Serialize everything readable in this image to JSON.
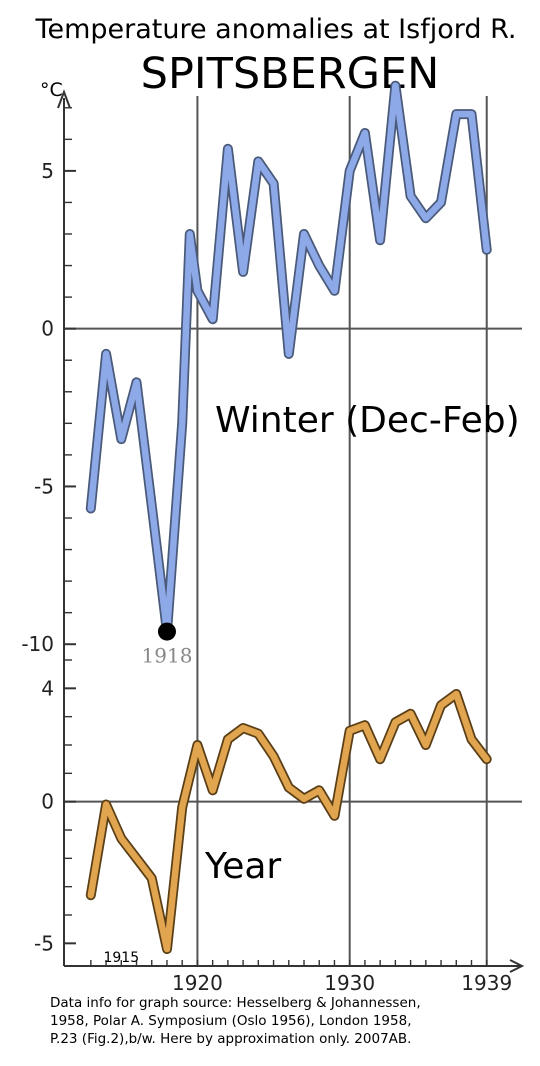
{
  "title": "Temperature anomalies at Isfjord R.",
  "subtitle": "SPITSBERGEN",
  "unit_label": "°C",
  "source_note": [
    "Data info for graph source: Hesselberg & Johannessen,",
    "1958, Polar A. Symposium (Oslo 1956), London 1958,",
    "P.23 (Fig.2),b/w. Here by approximation only. 2007AB."
  ],
  "colors": {
    "winter": "#8ea9e8",
    "winter_edge": "#4a5a7a",
    "year": "#e1a44f",
    "year_edge": "#5a3f16",
    "grid": "#555555",
    "highlight_label": "#888888"
  },
  "chart_data": [
    {
      "type": "line",
      "label": "Winter (Dec-Feb)",
      "ylabel": "°C",
      "ylim": [
        -10.5,
        7.5
      ],
      "yticks": [
        5,
        0,
        -5,
        -10
      ],
      "xlim": [
        1911.5,
        1940.2
      ],
      "xticks": [
        1920,
        1930,
        1939
      ],
      "grid": "vertical lines at 1920, 1930, 1939; horizontal zero line",
      "series": [
        {
          "x": [
            1913,
            1914,
            1915,
            1916,
            1917,
            1918,
            1919,
            1919.5,
            1920,
            1921,
            1922,
            1923,
            1924,
            1925,
            1926,
            1927,
            1928,
            1929,
            1930,
            1931,
            1932,
            1933,
            1934,
            1935,
            1936,
            1937,
            1938,
            1939
          ],
          "values": [
            -5.7,
            -0.8,
            -3.5,
            -1.7,
            -5.6,
            -9.6,
            -3.0,
            3.0,
            1.2,
            0.3,
            5.7,
            1.8,
            5.3,
            4.6,
            -0.8,
            3.0,
            2.0,
            1.2,
            5.0,
            6.2,
            2.8,
            7.7,
            4.2,
            3.5,
            4.0,
            6.8,
            6.8,
            2.5
          ]
        }
      ],
      "annotations": [
        {
          "x": 1918,
          "y": -9.6,
          "text": "1918",
          "marker": "filled black dot"
        }
      ]
    },
    {
      "type": "line",
      "label": "Year",
      "ylim": [
        -5.8,
        5.0
      ],
      "yticks": [
        4,
        0,
        -5
      ],
      "xlim": [
        1911.5,
        1940.2
      ],
      "xticks": [
        1920,
        1930,
        1939
      ],
      "series": [
        {
          "x": [
            1913,
            1914,
            1915,
            1916,
            1917,
            1918,
            1919,
            1920,
            1921,
            1922,
            1923,
            1924,
            1925,
            1926,
            1927,
            1928,
            1929,
            1930,
            1931,
            1932,
            1933,
            1934,
            1935,
            1936,
            1937,
            1938,
            1939
          ],
          "values": [
            -3.3,
            -0.1,
            -1.3,
            -2.0,
            -2.7,
            -5.2,
            -0.2,
            2.0,
            0.4,
            2.2,
            2.6,
            2.4,
            1.6,
            0.5,
            0.1,
            0.4,
            -0.5,
            2.5,
            2.7,
            1.5,
            2.8,
            3.1,
            2.0,
            3.4,
            3.8,
            2.2,
            1.5
          ]
        }
      ],
      "annotations": [
        {
          "x": 1915,
          "text": "1915"
        }
      ]
    }
  ]
}
